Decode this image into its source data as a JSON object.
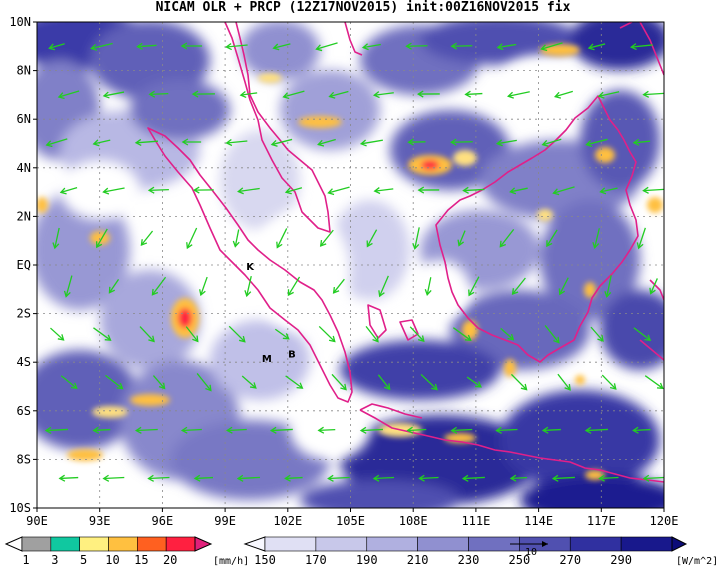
{
  "title": "NICAM OLR + PRCP (12Z17NOV2015) init:00Z16NOV2015 fix",
  "map": {
    "lon_range": [
      90,
      120
    ],
    "lat_range": [
      -10,
      10
    ],
    "lon_ticks": [
      "90E",
      "93E",
      "96E",
      "99E",
      "102E",
      "105E",
      "108E",
      "111E",
      "114E",
      "117E",
      "120E"
    ],
    "lat_ticks": [
      "10N",
      "8N",
      "6N",
      "4N",
      "2N",
      "EQ",
      "2S",
      "4S",
      "6S",
      "8S",
      "10S"
    ],
    "grid": true,
    "coastline_color": "#e0208a",
    "wind_vector_color": "#22cc22",
    "places": [
      {
        "label": "K",
        "lon": 100.2,
        "lat": -0.2
      },
      {
        "label": "M",
        "lon": 101.0,
        "lat": -4.0
      },
      {
        "label": "B",
        "lon": 102.2,
        "lat": -3.8
      }
    ]
  },
  "precip_colorbar": {
    "levels": [
      "1",
      "3",
      "5",
      "10",
      "15",
      "20"
    ],
    "unit": "[mm/h]",
    "colors": [
      "#a0a0a0",
      "#10c8a0",
      "#fff080",
      "#ffc040",
      "#ff6020",
      "#ff2040",
      "#e0207a"
    ]
  },
  "olr_colorbar": {
    "levels": [
      "150",
      "170",
      "190",
      "210",
      "230",
      "250",
      "270",
      "290"
    ],
    "unit": "[W/m^2]",
    "colors": [
      "#f8f8ff",
      "#e0e0f4",
      "#c8c8ea",
      "#b0b0e0",
      "#9090d0",
      "#7070c0",
      "#5050b0",
      "#3030a0",
      "#18188c",
      "#0c0c78"
    ]
  },
  "reference_vector_label": "10"
}
